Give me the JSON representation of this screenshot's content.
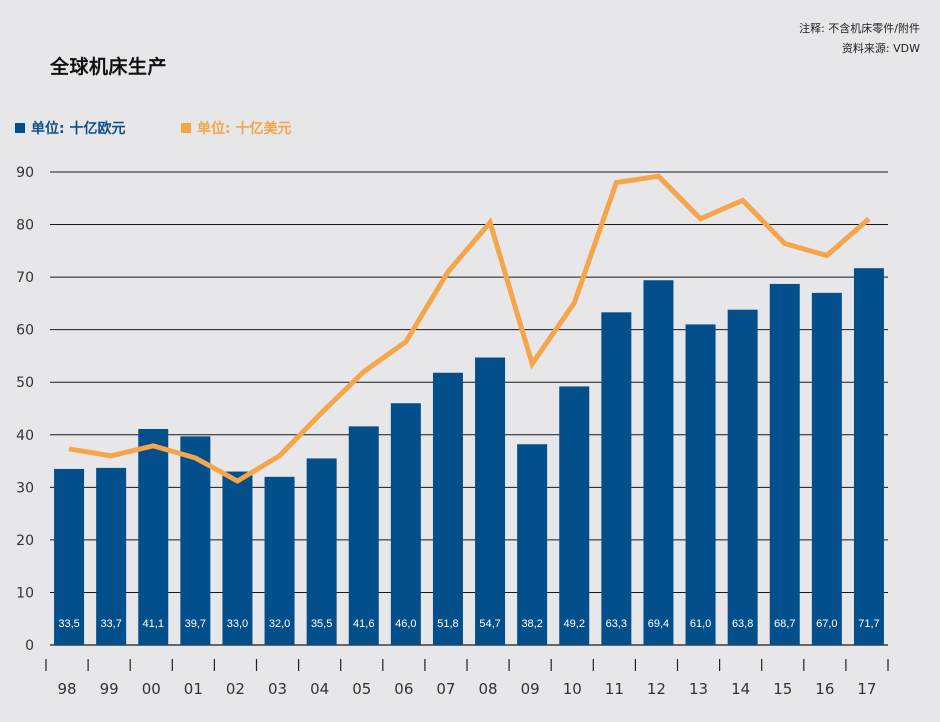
{
  "header": {
    "title": "全球机床生产",
    "note": "注释: 不含机床零件/附件",
    "source": "资料来源: VDW"
  },
  "colors": {
    "background": "#e7e7ea",
    "bar": "#034f8c",
    "line": "#f5a54a",
    "grid": "#1a1a1a"
  },
  "chart_data": {
    "type": "bar",
    "title": "全球机床生产",
    "xlabel": "",
    "ylabel": "",
    "ylim": [
      0,
      90
    ],
    "yticks": [
      0,
      10,
      20,
      30,
      40,
      50,
      60,
      70,
      80,
      90
    ],
    "grid": true,
    "legend_position": "top-left",
    "categories": [
      "98",
      "99",
      "00",
      "01",
      "02",
      "03",
      "04",
      "05",
      "06",
      "07",
      "08",
      "09",
      "10",
      "11",
      "12",
      "13",
      "14",
      "15",
      "16",
      "17"
    ],
    "series": [
      {
        "name": "单位: 十亿欧元",
        "type": "bar",
        "values": [
          33.5,
          33.7,
          41.1,
          39.7,
          33.0,
          32.0,
          35.5,
          41.6,
          46.0,
          51.8,
          54.7,
          38.2,
          49.2,
          63.3,
          69.4,
          61.0,
          63.8,
          68.7,
          67.0,
          71.7
        ],
        "labels": [
          "33,5",
          "33,7",
          "41,1",
          "39,7",
          "33,0",
          "32,0",
          "35,5",
          "41,6",
          "46,0",
          "51,8",
          "54,7",
          "38,2",
          "49,2",
          "63,3",
          "69,4",
          "61,0",
          "63,8",
          "68,7",
          "67,0",
          "71,7"
        ]
      },
      {
        "name": "单位: 十亿美元",
        "type": "line",
        "values": [
          37.3,
          36.0,
          37.9,
          35.6,
          31.2,
          36.0,
          44.2,
          52.0,
          57.7,
          71.0,
          80.4,
          53.5,
          65.1,
          88.0,
          89.2,
          81.1,
          84.6,
          76.4,
          74.1,
          81.1
        ]
      }
    ]
  }
}
